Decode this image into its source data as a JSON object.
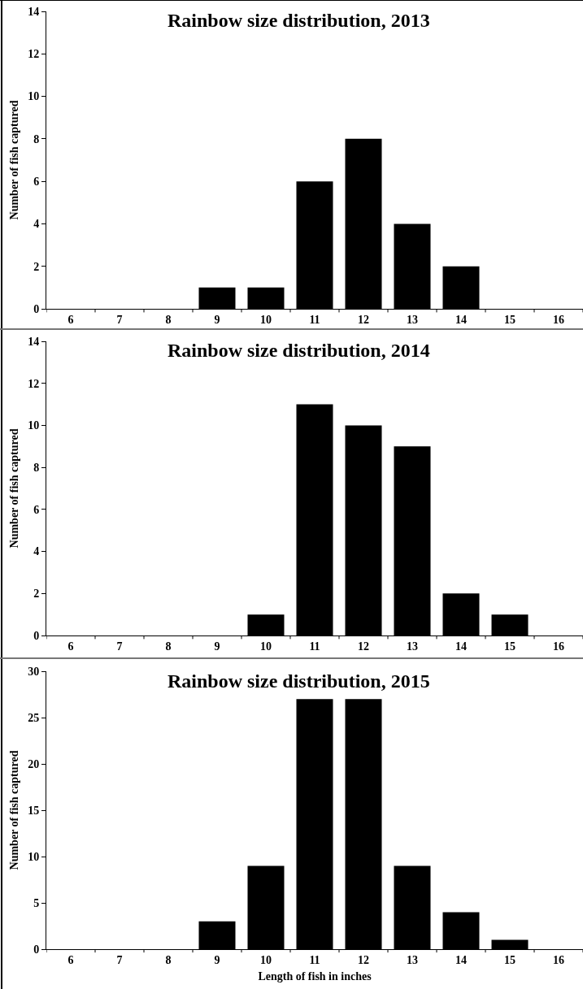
{
  "chart_data": [
    {
      "type": "bar",
      "title": "Rainbow size distribution, 2013",
      "ylabel": "Number of fish captured",
      "categories": [
        "6",
        "7",
        "8",
        "9",
        "10",
        "11",
        "12",
        "13",
        "14",
        "15",
        "16"
      ],
      "values": [
        0,
        0,
        0,
        1,
        1,
        6,
        8,
        4,
        2,
        0,
        0
      ],
      "color": "#000000",
      "ylim": [
        0,
        14
      ],
      "yticks": [
        0,
        2,
        4,
        6,
        8,
        10,
        12,
        14
      ]
    },
    {
      "type": "bar",
      "title": "Rainbow size distribution, 2014",
      "ylabel": "Number of fish captured",
      "categories": [
        "6",
        "7",
        "8",
        "9",
        "10",
        "11",
        "12",
        "13",
        "14",
        "15",
        "16"
      ],
      "values": [
        0,
        0,
        0,
        0,
        1,
        11,
        10,
        9,
        2,
        1,
        0
      ],
      "color": "#000000",
      "ylim": [
        0,
        14
      ],
      "yticks": [
        0,
        2,
        4,
        6,
        8,
        10,
        12,
        14
      ]
    },
    {
      "type": "bar",
      "title": "Rainbow size distribution, 2015",
      "ylabel": "Number of fish captured",
      "xlabel": "Length of fish in inches",
      "categories": [
        "6",
        "7",
        "8",
        "9",
        "10",
        "11",
        "12",
        "13",
        "14",
        "15",
        "16"
      ],
      "values": [
        0,
        0,
        0,
        3,
        9,
        27,
        27,
        9,
        4,
        1,
        0
      ],
      "color": "#000000",
      "ylim": [
        0,
        30
      ],
      "yticks": [
        0,
        5,
        10,
        15,
        20,
        25,
        30
      ]
    }
  ]
}
